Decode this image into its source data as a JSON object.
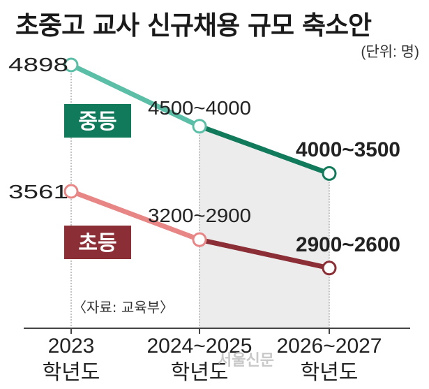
{
  "title": "초중고 교사 신규채용 규모 축소안",
  "unit": "(단위: 명)",
  "source": "〈자료: 교육부〉",
  "watermark": "서울신문",
  "chart_data": {
    "type": "line",
    "title": "초중고 교사 신규채용 규모 축소안",
    "categories": [
      "2023 학년도",
      "2024~2025 학년도",
      "2026~2027 학년도"
    ],
    "category_lines": [
      [
        "2023",
        "학년도"
      ],
      [
        "2024~2025",
        "학년도"
      ],
      [
        "2026~2027",
        "학년도"
      ]
    ],
    "ylim": [
      2400,
      5000
    ],
    "grid": false,
    "highlight_range": [
      "2024~2025 학년도",
      "2026~2027 학년도"
    ],
    "series": [
      {
        "name": "중등",
        "values": [
          4898,
          4250,
          3750
        ],
        "point_labels": [
          "4898",
          "4500~4000",
          "4000~3500"
        ],
        "past_color": "#5bbfa8",
        "future_color": "#117a5a"
      },
      {
        "name": "초등",
        "values": [
          3561,
          3050,
          2750
        ],
        "point_labels": [
          "3561",
          "3200~2900",
          "2900~2600"
        ],
        "past_color": "#e88585",
        "future_color": "#8b2e35"
      }
    ]
  }
}
